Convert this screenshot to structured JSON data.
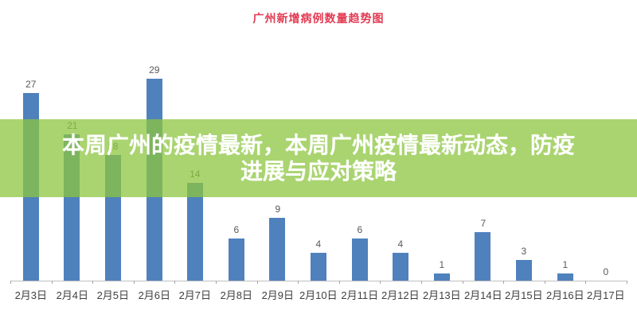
{
  "title": {
    "text": "广州新增病例数量趋势图",
    "color": "#e23a52"
  },
  "overlay": {
    "line1": "本周广州的疫情最新，本周广州疫情最新动态，防疫",
    "line2": "进展与应对策略",
    "bg_rgba": "rgba(140, 198, 63, 0.75)",
    "text_color": "#ffffff"
  },
  "chart_data": {
    "type": "bar",
    "title": "广州新增病例数量趋势图",
    "categories": [
      "2月3日",
      "2月4日",
      "2月5日",
      "2月6日",
      "2月7日",
      "2月8日",
      "2月9日",
      "2月10日",
      "2月11日",
      "2月12日",
      "2月13日",
      "2月14日",
      "2月15日",
      "2月16日",
      "2月17日"
    ],
    "values": [
      27,
      21,
      18,
      29,
      14,
      6,
      9,
      4,
      6,
      4,
      1,
      7,
      3,
      1,
      0
    ],
    "xlabel": "",
    "ylabel": "",
    "ylim": [
      0,
      30
    ],
    "grid": false,
    "legend": false,
    "data_labels": true,
    "bar_color": "#4f81bd",
    "value_label_color": "#595959",
    "axis_label_color": "#3f3f3f",
    "axis_line_color": "#bfbfbf"
  }
}
